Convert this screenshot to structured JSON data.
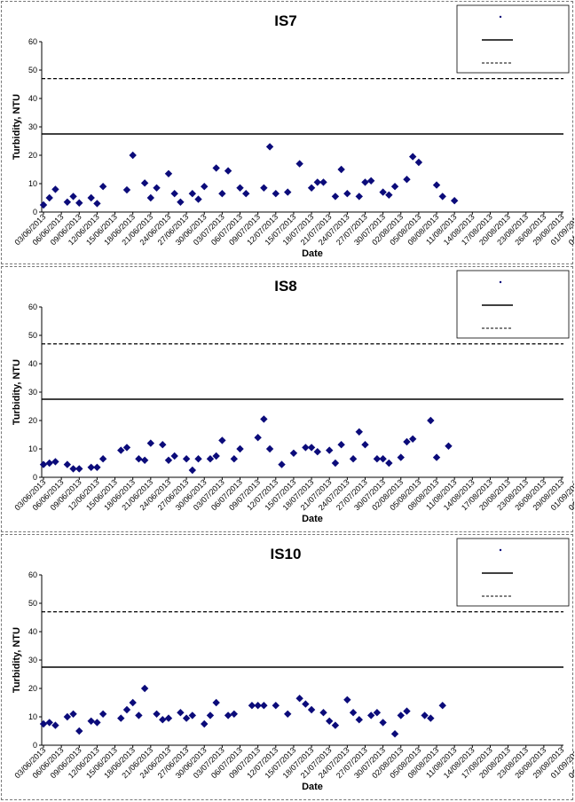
{
  "colors": {
    "series": "#0b0b7a",
    "axis": "#000000",
    "border": "#777777"
  },
  "x_tick_labels": [
    "03/06/2013",
    "06/06/2013",
    "09/06/2013",
    "12/06/2013",
    "15/06/2013",
    "18/06/2013",
    "21/06/2013",
    "24/06/2013",
    "27/06/2013",
    "30/06/2013",
    "03/07/2013",
    "06/07/2013",
    "09/07/2013",
    "12/07/2013",
    "15/07/2013",
    "18/07/2013",
    "21/07/2013",
    "24/07/2013",
    "27/07/2013",
    "30/07/2013",
    "02/08/2013",
    "05/08/2013",
    "08/08/2013",
    "11/08/2013",
    "14/08/2013",
    "17/08/2013",
    "20/08/2013",
    "23/08/2013",
    "26/08/2013",
    "29/08/2013",
    "01/09/2013",
    "04/09/2013",
    "07/09/2013",
    "10/09/2013",
    "13/09/2013",
    "16/09/2013",
    "19/09/2013",
    "22/09/2013",
    "25/09/2013",
    "28/09/2013"
  ],
  "chart_data": [
    {
      "type": "scatter",
      "title": "IS7",
      "xlabel": "Date",
      "ylabel": "Turbidity, NTU",
      "ylim": [
        0,
        60
      ],
      "yticks": [
        "0",
        "10",
        "20",
        "30",
        "40",
        "50",
        "60"
      ],
      "grid": false,
      "legend_position": "top-right",
      "reference_lines": [
        {
          "value": 27.5,
          "style": "solid"
        },
        {
          "value": 47,
          "style": "dashed"
        }
      ],
      "points": [
        {
          "x": "03/06/2013",
          "y": 2.5
        },
        {
          "x": "04/06/2013",
          "y": 5
        },
        {
          "x": "05/06/2013",
          "y": 8
        },
        {
          "x": "07/06/2013",
          "y": 3.5
        },
        {
          "x": "08/06/2013",
          "y": 5.5
        },
        {
          "x": "09/06/2013",
          "y": 3.2
        },
        {
          "x": "11/06/2013",
          "y": 5
        },
        {
          "x": "12/06/2013",
          "y": 3
        },
        {
          "x": "13/06/2013",
          "y": 9
        },
        {
          "x": "17/06/2013",
          "y": 7.8
        },
        {
          "x": "18/06/2013",
          "y": 20
        },
        {
          "x": "20/06/2013",
          "y": 10.2
        },
        {
          "x": "21/06/2013",
          "y": 5
        },
        {
          "x": "22/06/2013",
          "y": 8.5
        },
        {
          "x": "24/06/2013",
          "y": 13.5
        },
        {
          "x": "25/06/2013",
          "y": 6.5
        },
        {
          "x": "26/06/2013",
          "y": 3.5
        },
        {
          "x": "28/06/2013",
          "y": 6.5
        },
        {
          "x": "29/06/2013",
          "y": 4.5
        },
        {
          "x": "30/06/2013",
          "y": 9
        },
        {
          "x": "02/07/2013",
          "y": 15.5
        },
        {
          "x": "03/07/2013",
          "y": 6.5
        },
        {
          "x": "04/07/2013",
          "y": 14.5
        },
        {
          "x": "06/07/2013",
          "y": 8.5
        },
        {
          "x": "07/07/2013",
          "y": 6.5
        },
        {
          "x": "10/07/2013",
          "y": 8.5
        },
        {
          "x": "11/07/2013",
          "y": 23
        },
        {
          "x": "12/07/2013",
          "y": 6.5
        },
        {
          "x": "14/07/2013",
          "y": 7
        },
        {
          "x": "16/07/2013",
          "y": 17
        },
        {
          "x": "18/07/2013",
          "y": 8.5
        },
        {
          "x": "19/07/2013",
          "y": 10.5
        },
        {
          "x": "20/07/2013",
          "y": 10.5
        },
        {
          "x": "22/07/2013",
          "y": 5.5
        },
        {
          "x": "23/07/2013",
          "y": 15
        },
        {
          "x": "24/07/2013",
          "y": 6.5
        },
        {
          "x": "26/07/2013",
          "y": 5.5
        },
        {
          "x": "27/07/2013",
          "y": 10.5
        },
        {
          "x": "28/07/2013",
          "y": 11
        },
        {
          "x": "30/07/2013",
          "y": 7
        },
        {
          "x": "31/07/2013",
          "y": 6
        },
        {
          "x": "01/08/2013",
          "y": 9
        },
        {
          "x": "03/08/2013",
          "y": 11.5
        },
        {
          "x": "04/08/2013",
          "y": 19.5
        },
        {
          "x": "05/08/2013",
          "y": 17.5
        },
        {
          "x": "08/08/2013",
          "y": 9.5
        },
        {
          "x": "09/08/2013",
          "y": 5.5
        },
        {
          "x": "11/08/2013",
          "y": 4
        }
      ]
    },
    {
      "type": "scatter",
      "title": "IS8",
      "xlabel": "Date",
      "ylabel": "Turbidity, NTU",
      "ylim": [
        0,
        60
      ],
      "yticks": [
        "0",
        "10",
        "20",
        "30",
        "40",
        "50",
        "60"
      ],
      "grid": false,
      "legend_position": "top-right",
      "reference_lines": [
        {
          "value": 27.5,
          "style": "solid"
        },
        {
          "value": 47,
          "style": "dashed"
        }
      ],
      "points": [
        {
          "x": "03/06/2013",
          "y": 4.5
        },
        {
          "x": "04/06/2013",
          "y": 5
        },
        {
          "x": "05/06/2013",
          "y": 5.5
        },
        {
          "x": "07/06/2013",
          "y": 4.5
        },
        {
          "x": "08/06/2013",
          "y": 3
        },
        {
          "x": "09/06/2013",
          "y": 3
        },
        {
          "x": "11/06/2013",
          "y": 3.5
        },
        {
          "x": "12/06/2013",
          "y": 3.5
        },
        {
          "x": "13/06/2013",
          "y": 6.5
        },
        {
          "x": "16/06/2013",
          "y": 9.5
        },
        {
          "x": "17/06/2013",
          "y": 10.5
        },
        {
          "x": "19/06/2013",
          "y": 6.5
        },
        {
          "x": "20/06/2013",
          "y": 6
        },
        {
          "x": "21/06/2013",
          "y": 12
        },
        {
          "x": "23/06/2013",
          "y": 11.5
        },
        {
          "x": "24/06/2013",
          "y": 6
        },
        {
          "x": "25/06/2013",
          "y": 7.5
        },
        {
          "x": "27/06/2013",
          "y": 6.5
        },
        {
          "x": "28/06/2013",
          "y": 2.5
        },
        {
          "x": "29/06/2013",
          "y": 6.5
        },
        {
          "x": "01/07/2013",
          "y": 6.5
        },
        {
          "x": "02/07/2013",
          "y": 7.5
        },
        {
          "x": "03/07/2013",
          "y": 13
        },
        {
          "x": "05/07/2013",
          "y": 6.5
        },
        {
          "x": "06/07/2013",
          "y": 10
        },
        {
          "x": "09/07/2013",
          "y": 14
        },
        {
          "x": "10/07/2013",
          "y": 20.5
        },
        {
          "x": "11/07/2013",
          "y": 10
        },
        {
          "x": "13/07/2013",
          "y": 4.5
        },
        {
          "x": "15/07/2013",
          "y": 8.5
        },
        {
          "x": "17/07/2013",
          "y": 10.5
        },
        {
          "x": "18/07/2013",
          "y": 10.5
        },
        {
          "x": "19/07/2013",
          "y": 9
        },
        {
          "x": "21/07/2013",
          "y": 9.5
        },
        {
          "x": "22/07/2013",
          "y": 5
        },
        {
          "x": "23/07/2013",
          "y": 11.5
        },
        {
          "x": "25/07/2013",
          "y": 6.5
        },
        {
          "x": "26/07/2013",
          "y": 16
        },
        {
          "x": "27/07/2013",
          "y": 11.5
        },
        {
          "x": "29/07/2013",
          "y": 6.5
        },
        {
          "x": "30/07/2013",
          "y": 6.5
        },
        {
          "x": "31/07/2013",
          "y": 5
        },
        {
          "x": "02/08/2013",
          "y": 7
        },
        {
          "x": "03/08/2013",
          "y": 12.5
        },
        {
          "x": "04/08/2013",
          "y": 13.5
        },
        {
          "x": "07/08/2013",
          "y": 20
        },
        {
          "x": "08/08/2013",
          "y": 7
        },
        {
          "x": "10/08/2013",
          "y": 11
        }
      ]
    },
    {
      "type": "scatter",
      "title": "IS10",
      "xlabel": "Date",
      "ylabel": "Turbidity, NTU",
      "ylim": [
        0,
        60
      ],
      "yticks": [
        "0",
        "10",
        "20",
        "30",
        "40",
        "50",
        "60"
      ],
      "grid": false,
      "legend_position": "top-right",
      "reference_lines": [
        {
          "value": 27.5,
          "style": "solid"
        },
        {
          "value": 47,
          "style": "dashed"
        }
      ],
      "points": [
        {
          "x": "03/06/2013",
          "y": 7.5
        },
        {
          "x": "04/06/2013",
          "y": 8
        },
        {
          "x": "05/06/2013",
          "y": 7
        },
        {
          "x": "07/06/2013",
          "y": 10
        },
        {
          "x": "08/06/2013",
          "y": 11
        },
        {
          "x": "09/06/2013",
          "y": 5
        },
        {
          "x": "11/06/2013",
          "y": 8.5
        },
        {
          "x": "12/06/2013",
          "y": 8
        },
        {
          "x": "13/06/2013",
          "y": 11
        },
        {
          "x": "16/06/2013",
          "y": 9.5
        },
        {
          "x": "17/06/2013",
          "y": 12.5
        },
        {
          "x": "18/06/2013",
          "y": 15
        },
        {
          "x": "19/06/2013",
          "y": 10.5
        },
        {
          "x": "20/06/2013",
          "y": 20
        },
        {
          "x": "22/06/2013",
          "y": 11
        },
        {
          "x": "23/06/2013",
          "y": 9
        },
        {
          "x": "24/06/2013",
          "y": 9.5
        },
        {
          "x": "26/06/2013",
          "y": 11.5
        },
        {
          "x": "27/06/2013",
          "y": 9.5
        },
        {
          "x": "28/06/2013",
          "y": 10.5
        },
        {
          "x": "30/06/2013",
          "y": 7.5
        },
        {
          "x": "01/07/2013",
          "y": 10.5
        },
        {
          "x": "02/07/2013",
          "y": 15
        },
        {
          "x": "04/07/2013",
          "y": 10.5
        },
        {
          "x": "05/07/2013",
          "y": 11
        },
        {
          "x": "08/07/2013",
          "y": 14
        },
        {
          "x": "09/07/2013",
          "y": 14
        },
        {
          "x": "10/07/2013",
          "y": 14
        },
        {
          "x": "12/07/2013",
          "y": 14
        },
        {
          "x": "14/07/2013",
          "y": 11
        },
        {
          "x": "16/07/2013",
          "y": 16.5
        },
        {
          "x": "17/07/2013",
          "y": 14.5
        },
        {
          "x": "18/07/2013",
          "y": 12.5
        },
        {
          "x": "20/07/2013",
          "y": 11.5
        },
        {
          "x": "21/07/2013",
          "y": 8.5
        },
        {
          "x": "22/07/2013",
          "y": 7
        },
        {
          "x": "24/07/2013",
          "y": 16
        },
        {
          "x": "25/07/2013",
          "y": 11.5
        },
        {
          "x": "26/07/2013",
          "y": 9
        },
        {
          "x": "28/07/2013",
          "y": 10.5
        },
        {
          "x": "29/07/2013",
          "y": 11.5
        },
        {
          "x": "30/07/2013",
          "y": 8
        },
        {
          "x": "01/08/2013",
          "y": 4
        },
        {
          "x": "02/08/2013",
          "y": 10.5
        },
        {
          "x": "03/08/2013",
          "y": 12
        },
        {
          "x": "06/08/2013",
          "y": 10.5
        },
        {
          "x": "07/08/2013",
          "y": 9.5
        },
        {
          "x": "09/08/2013",
          "y": 14
        }
      ]
    }
  ]
}
